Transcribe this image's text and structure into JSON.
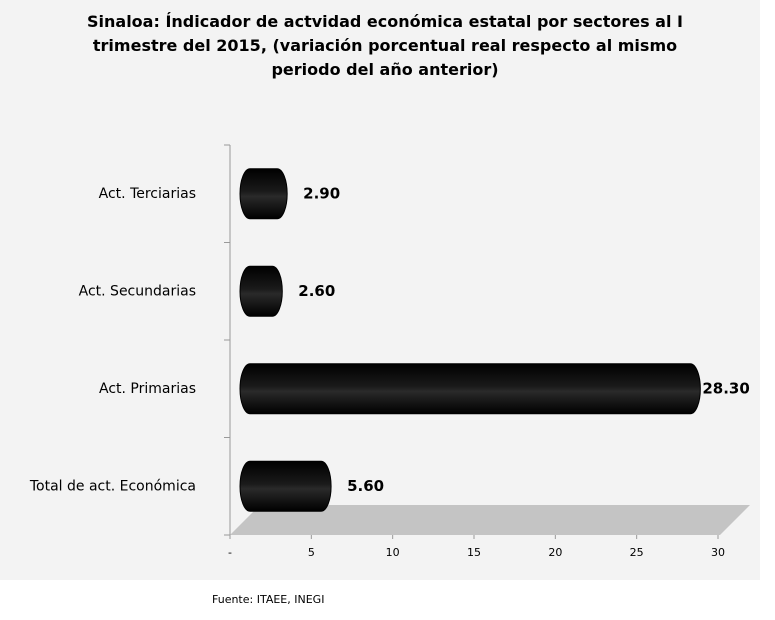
{
  "chart_data": {
    "type": "bar",
    "orientation": "horizontal",
    "title": "Sinaloa: Índicador de actvidad económica  estatal por sectores al I trimestre del 2015, (variación  porcentual real respecto al mismo periodo del año anterior)",
    "categories": [
      "Act. Terciarias",
      "Act. Secundarias",
      "Act. Primarias",
      "Total de act. Económica"
    ],
    "values": [
      2.9,
      2.6,
      28.3,
      5.6
    ],
    "value_labels": [
      "2.90",
      "2.60",
      "28.30",
      "5.60"
    ],
    "color": "#000000",
    "xlim": [
      0,
      30
    ],
    "xticks": [
      {
        "value": 0,
        "label": "-"
      },
      5,
      10,
      15,
      20,
      25,
      30
    ],
    "source": "Fuente:  ITAEE,  INEGI"
  }
}
